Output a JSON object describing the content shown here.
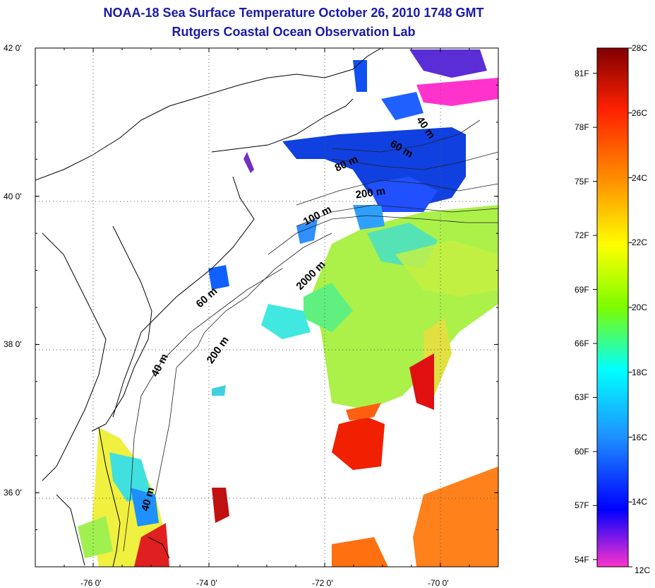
{
  "title": {
    "line1": "NOAA-18 Sea Surface Temperature October 26, 2010 1748 GMT",
    "line2": "Rutgers Coastal Ocean Observation Lab"
  },
  "map": {
    "lat_range": [
      35,
      42
    ],
    "lon_range": [
      -77,
      -69
    ],
    "lat_ticks": [
      {
        "value": 42,
        "label": "42 0'"
      },
      {
        "value": 40,
        "label": "40 0'"
      },
      {
        "value": 38,
        "label": "38 0'"
      },
      {
        "value": 36,
        "label": "36 0'"
      }
    ],
    "lon_ticks": [
      {
        "value": -76,
        "label": "-76 0'"
      },
      {
        "value": -74,
        "label": "-74 0'"
      },
      {
        "value": -72,
        "label": "-72 0'"
      },
      {
        "value": -70,
        "label": "-70 0'"
      }
    ],
    "grid": true,
    "depth_labels": [
      {
        "text": "40 m",
        "lon": -70.3,
        "lat": 40.9,
        "rot": 55
      },
      {
        "text": "60 m",
        "lon": -70.7,
        "lat": 40.6,
        "rot": 30
      },
      {
        "text": "80 m",
        "lon": -71.6,
        "lat": 40.4,
        "rot": -25
      },
      {
        "text": "200 m",
        "lon": -71.2,
        "lat": 40.0,
        "rot": -8
      },
      {
        "text": "100 m",
        "lon": -72.1,
        "lat": 39.7,
        "rot": -28
      },
      {
        "text": "2000 m",
        "lon": -72.2,
        "lat": 38.9,
        "rot": -45
      },
      {
        "text": "60 m",
        "lon": -74.0,
        "lat": 38.6,
        "rot": -42
      },
      {
        "text": "200 m",
        "lon": -73.8,
        "lat": 37.9,
        "rot": -55
      },
      {
        "text": "40 m",
        "lon": -74.8,
        "lat": 37.7,
        "rot": -62
      },
      {
        "text": "40 m",
        "lon": -75.0,
        "lat": 35.9,
        "rot": -75
      }
    ]
  },
  "colorbar": {
    "celsius_labels": [
      "28C",
      "26C",
      "24C",
      "22C",
      "20C",
      "18C",
      "16C",
      "14C",
      "12C"
    ],
    "fahrenheit_labels": [
      "81F",
      "78F",
      "75F",
      "72F",
      "69F",
      "66F",
      "63F",
      "60F",
      "57F",
      "54F"
    ],
    "colors": [
      "#ff33cc",
      "#0000ff",
      "#1e90ff",
      "#00ffff",
      "#7cfc00",
      "#ffff00",
      "#ff8c00",
      "#ff2200",
      "#800000"
    ]
  }
}
